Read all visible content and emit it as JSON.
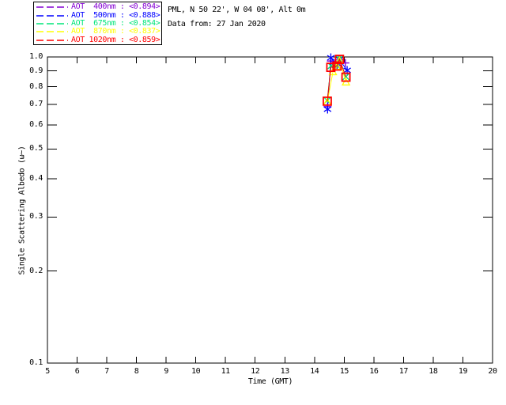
{
  "header": {
    "info_line1": "PML, N 50 22', W 04 08', Alt 0m",
    "info_line2": "Data from: 27 Jan 2020"
  },
  "chart_data": {
    "type": "scatter",
    "title": "",
    "xlabel": "Time (GMT)",
    "ylabel": "Single Scattering Albedo (ω~)",
    "x_axis": {
      "min": 5,
      "max": 20,
      "scale": "linear",
      "tick_values": [
        5,
        6,
        7,
        8,
        9,
        10,
        11,
        12,
        13,
        14,
        15,
        16,
        17,
        18,
        19,
        20
      ],
      "tick_labels": [
        "5",
        "6",
        "7",
        "8",
        "9",
        "10",
        "11",
        "12",
        "13",
        "14",
        "15",
        "16",
        "17",
        "18",
        "19",
        "20"
      ]
    },
    "y_axis": {
      "min": 0.1,
      "max": 1.0,
      "scale": "log",
      "tick_values": [
        0.1,
        0.2,
        0.3,
        0.4,
        0.5,
        0.6,
        0.7,
        0.8,
        0.9,
        1.0
      ],
      "tick_labels": [
        "0.1",
        "0.2",
        "0.3",
        "0.4",
        "0.5",
        "0.6",
        "0.7",
        "0.8",
        "0.9",
        "1.0"
      ]
    },
    "grid": false,
    "legend_position": "top-left",
    "frame_color": "#000000",
    "series": [
      {
        "name": "AOT 400nm",
        "legend_label": "AOT  400nm : <0.894>",
        "mean": "<0.894>",
        "color": "#8400d3",
        "marker": "plus",
        "points": [
          [
            14.44,
            0.688
          ],
          [
            14.55,
            0.97
          ],
          [
            14.76,
            0.938
          ],
          [
            14.84,
            0.978
          ],
          [
            15.04,
            0.956
          ]
        ]
      },
      {
        "name": "AOT 500nm",
        "legend_label": "AOT  500nm : <0.888>",
        "mean": "<0.888>",
        "color": "#0000ff",
        "marker": "asterisk",
        "points": [
          [
            14.44,
            0.675
          ],
          [
            14.55,
            0.994
          ],
          [
            14.76,
            0.936
          ],
          [
            14.84,
            0.98
          ],
          [
            15.1,
            0.904
          ]
        ]
      },
      {
        "name": "AOT 675nm",
        "legend_label": "AOT  675nm : <0.854>",
        "mean": "<0.854>",
        "color": "#00e57a",
        "marker": "x",
        "points": [
          [
            14.43,
            0.72
          ],
          [
            14.55,
            0.935
          ],
          [
            14.76,
            0.937
          ],
          [
            14.84,
            0.985
          ],
          [
            15.06,
            0.862
          ]
        ]
      },
      {
        "name": "AOT 870nm",
        "legend_label": "AOT  870nm : <0.837>",
        "mean": "<0.837>",
        "color": "#ffff00",
        "marker": "triangle",
        "points": [
          [
            14.43,
            0.712
          ],
          [
            14.62,
            0.893
          ],
          [
            14.76,
            0.931
          ],
          [
            14.84,
            0.973
          ],
          [
            15.06,
            0.827
          ]
        ]
      },
      {
        "name": "AOT 1020nm",
        "legend_label": "AOT 1020nm : <0.859>",
        "mean": "<0.859>",
        "color": "#ff0000",
        "marker": "square",
        "points": [
          [
            14.43,
            0.717
          ],
          [
            14.55,
            0.925
          ],
          [
            14.76,
            0.934
          ],
          [
            14.84,
            0.982
          ],
          [
            15.06,
            0.859
          ]
        ]
      }
    ]
  }
}
